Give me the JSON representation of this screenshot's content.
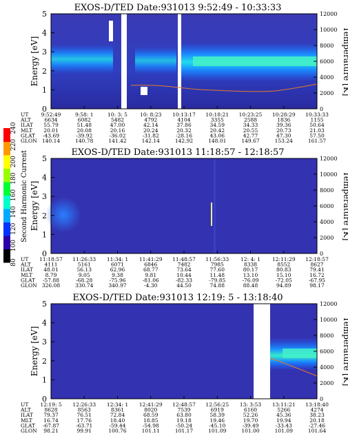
{
  "colorbar": {
    "label": "Second Harmonic Current",
    "ticks": [
      "80",
      "100",
      "120",
      "140",
      "160",
      "180",
      "200",
      "220",
      "240"
    ],
    "colors": [
      "#000000",
      "#2b00aa",
      "#0033ff",
      "#00aaff",
      "#00ffcc",
      "#00ff33",
      "#99ff00",
      "#ffff00",
      "#ff9900",
      "#ff0000"
    ]
  },
  "chart_data": [
    {
      "type": "heatmap",
      "title": "EXOS-D/TED   Date:931013  9:52:49 - 10:33:33",
      "ylabel": "Energy [eV]",
      "y2label": "Temperature [K]",
      "ylim": [
        0,
        5
      ],
      "y2lim": [
        0,
        12000
      ],
      "yticks": [
        "0",
        "1",
        "2",
        "3",
        "4",
        "5"
      ],
      "y2ticks": [
        "0",
        "2000",
        "4000",
        "6000",
        "8000",
        "10000",
        "12000"
      ],
      "row_labels": [
        "UT",
        "ALT",
        "ILAT",
        "MLT",
        "GLAT",
        "GLON"
      ],
      "columns": [
        [
          "9:52:49",
          "6634",
          "55.79",
          "20.01",
          "-43.69",
          "140.14"
        ],
        [
          "9:58: 1",
          "6082",
          "51.48",
          "20.08",
          "-39.92",
          "140.78"
        ],
        [
          "10: 3: 5",
          "5482",
          "47.00",
          "20.16",
          "-36.02",
          "141.42"
        ],
        [
          "10: 8:23",
          "4792",
          "42.14",
          "20.24",
          "-31.82",
          "142.14"
        ],
        [
          "10:13:17",
          "4104",
          "37.86",
          "20.32",
          "-28.16",
          "142.92"
        ],
        [
          "10:18:21",
          "3355",
          "34.59",
          "20.42",
          "43.06",
          "148.01"
        ],
        [
          "10:23:25",
          "2588",
          "34.33",
          "20.55",
          "42.77",
          "149.67"
        ],
        [
          "10:28:29",
          "1836",
          "39.36",
          "20.73",
          "47.30",
          "153.24"
        ],
        [
          "10:33:33",
          "1155",
          "50.64",
          "21.03",
          "57.50",
          "161.57"
        ]
      ]
    },
    {
      "type": "heatmap",
      "title": "EXOS-D/TED   Date:931013  11:18:57 - 12:18:57",
      "ylabel": "Energy [eV]",
      "y2label": "Temperature [K]",
      "ylim": [
        0,
        5
      ],
      "y2lim": [
        0,
        12000
      ],
      "yticks": [
        "0",
        "1",
        "2",
        "3",
        "4",
        "5"
      ],
      "y2ticks": [
        "0",
        "2000",
        "4000",
        "6000",
        "8000",
        "10000",
        "12000"
      ],
      "row_labels": [
        "UT",
        "ALT",
        "ILAT",
        "MLT",
        "GLAT",
        "GLON"
      ],
      "columns": [
        [
          "11:18:57",
          "4111",
          "48.01",
          "8.79",
          "-57.88",
          "326.08"
        ],
        [
          "11:26:33",
          "5161",
          "56.13",
          "9.05",
          "-68.28",
          "330.74"
        ],
        [
          "11:34: 1",
          "6071",
          "62.96",
          "9.38",
          "-75.96",
          "340.97"
        ],
        [
          "11:41:29",
          "6846",
          "68.77",
          "9.81",
          "-81.06",
          "-4.30"
        ],
        [
          "11:48:57",
          "7482",
          "73.64",
          "10.44",
          "-82.33",
          "44.50"
        ],
        [
          "11:56:33",
          "7985",
          "77.60",
          "11.48",
          "-79.85",
          "74.88"
        ],
        [
          "12: 4: 1",
          "8338",
          "80.17",
          "13.10",
          "-76.09",
          "88.48"
        ],
        [
          "12:11:29",
          "8552",
          "80.83",
          "15.10",
          "-72.05",
          "94.89"
        ],
        [
          "12:18:57",
          "8627",
          "79.41",
          "16.72",
          "-67.95",
          "98.17"
        ]
      ]
    },
    {
      "type": "heatmap",
      "title": "EXOS-D/TED   Date:931013  12:19: 5 - 13:18:40",
      "ylabel": "Energy [eV]",
      "y2label": "Temperature [K]",
      "ylim": [
        0,
        5
      ],
      "y2lim": [
        0,
        12000
      ],
      "yticks": [
        "0",
        "1",
        "2",
        "3",
        "4",
        "5"
      ],
      "y2ticks": [
        "0",
        "2000",
        "4000",
        "6000",
        "8000",
        "10000",
        "12000"
      ],
      "row_labels": [
        "UT",
        "ALT",
        "ILAT",
        "MLT",
        "GLAT",
        "GLON"
      ],
      "columns": [
        [
          "12:19: 5",
          "8628",
          "79.37",
          "16.74",
          "-67.87",
          "98.21"
        ],
        [
          "12:26:33",
          "8563",
          "76.51",
          "17.76",
          "-63.71",
          "99.91"
        ],
        [
          "12:34: 1",
          "8361",
          "72.84",
          "18.40",
          "-59.44",
          "100.76"
        ],
        [
          "12:41:29",
          "8020",
          "68.59",
          "18.85",
          "-54.98",
          "101.11"
        ],
        [
          "12:48:57",
          "7539",
          "63.80",
          "19.18",
          "-50.24",
          "101.17"
        ],
        [
          "12:56:25",
          "6919",
          "58.39",
          "19.46",
          "-45.10",
          "101.09"
        ],
        [
          "13: 3:53",
          "6160",
          "52.26",
          "19.70",
          "-39.49",
          "101.00"
        ],
        [
          "13:11:21",
          "5266",
          "45.36",
          "19.94",
          "-33.43",
          "101.09"
        ],
        [
          "13:18:40",
          "4274",
          "38.23",
          "20.18",
          "-27.46",
          "101.64"
        ]
      ]
    }
  ]
}
